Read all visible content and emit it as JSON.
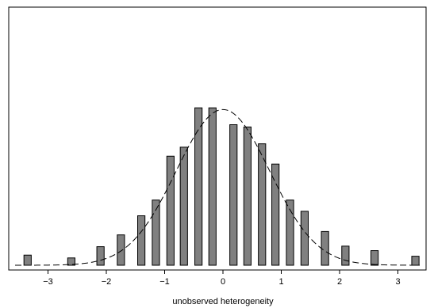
{
  "chart_data": {
    "type": "bar",
    "xlabel": "unobserved heterogeneity",
    "ylabel": "",
    "xlim": [
      -3.5,
      3.5
    ],
    "ylim": [
      0,
      1.38
    ],
    "xticks": [
      -3,
      -2,
      -1,
      0,
      1,
      2,
      3
    ],
    "xtick_labels": [
      "−3",
      "−2",
      "−1",
      "0",
      "1",
      "2",
      "3"
    ],
    "bar_width": 0.125,
    "bars": [
      {
        "x": -3.35,
        "value": 0.09
      },
      {
        "x": -2.6,
        "value": 0.065
      },
      {
        "x": -2.1,
        "value": 0.165
      },
      {
        "x": -1.75,
        "value": 0.27
      },
      {
        "x": -1.4,
        "value": 0.44
      },
      {
        "x": -1.15,
        "value": 0.58
      },
      {
        "x": -0.9,
        "value": 0.97
      },
      {
        "x": -0.67,
        "value": 1.05
      },
      {
        "x": -0.42,
        "value": 1.4
      },
      {
        "x": -0.18,
        "value": 1.4
      },
      {
        "x": 0.18,
        "value": 1.25
      },
      {
        "x": 0.42,
        "value": 1.23
      },
      {
        "x": 0.67,
        "value": 1.08
      },
      {
        "x": 0.9,
        "value": 0.9
      },
      {
        "x": 1.15,
        "value": 0.58
      },
      {
        "x": 1.4,
        "value": 0.48
      },
      {
        "x": 1.75,
        "value": 0.3
      },
      {
        "x": 2.1,
        "value": 0.17
      },
      {
        "x": 2.6,
        "value": 0.13
      },
      {
        "x": 3.3,
        "value": 0.08
      }
    ],
    "density_curve": {
      "style": "dashed",
      "mean": 0,
      "sd": 0.8,
      "peak": 1.385
    },
    "colors": {
      "bar_fill": "#808080",
      "bar_stroke": "#000000",
      "curve": "#000000"
    },
    "grid": false,
    "legend": "none"
  }
}
